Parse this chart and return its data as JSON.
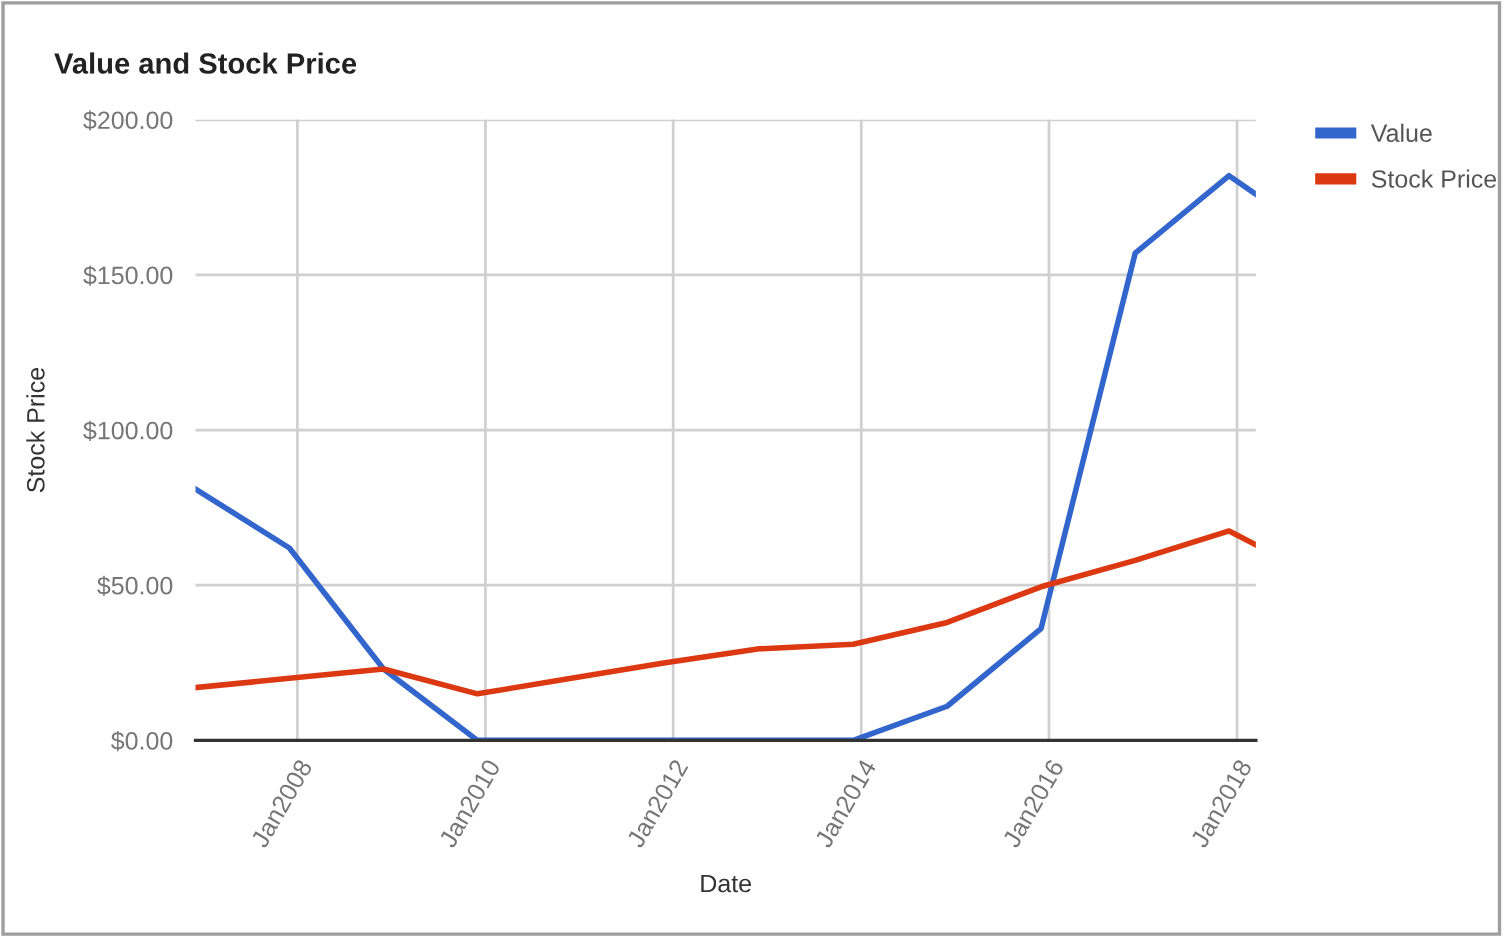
{
  "chart_data": {
    "type": "line",
    "title": "Value and Stock Price",
    "xlabel": "Date",
    "ylabel": "Stock Price",
    "x": [
      "2006-12",
      "2007-12",
      "2008-12",
      "2009-12",
      "2010-12",
      "2011-12",
      "2012-12",
      "2013-12",
      "2014-12",
      "2015-12",
      "2016-12",
      "2017-12",
      "2018-03-15"
    ],
    "series": [
      {
        "name": "Value",
        "color": "#3366cc",
        "values": [
          81,
          62,
          23,
          0,
          0,
          0,
          0,
          0,
          11,
          36,
          157,
          182,
          176
        ]
      },
      {
        "name": "Stock Price",
        "color": "#dc3912",
        "values": [
          17,
          20,
          23,
          15,
          20,
          25,
          29.5,
          31,
          38,
          49.5,
          58,
          67.5,
          63
        ]
      }
    ],
    "xlim": [
      "2006-12",
      "2018-03-15"
    ],
    "xticks": [
      {
        "value": "2008-01",
        "label": "Jan2008"
      },
      {
        "value": "2010-01",
        "label": "Jan2010"
      },
      {
        "value": "2012-01",
        "label": "Jan2012"
      },
      {
        "value": "2014-01",
        "label": "Jan2014"
      },
      {
        "value": "2016-01",
        "label": "Jan2016"
      },
      {
        "value": "2018-01",
        "label": "Jan2018"
      }
    ],
    "ylim": [
      0,
      200
    ],
    "yticks": [
      {
        "value": 0,
        "label": "$0.00"
      },
      {
        "value": 50,
        "label": "$50.00"
      },
      {
        "value": 100,
        "label": "$100.00"
      },
      {
        "value": 150,
        "label": "$150.00"
      },
      {
        "value": 200,
        "label": "$200.00"
      }
    ],
    "grid": true,
    "legend": "top right",
    "marker": "none",
    "line_style": "solid"
  }
}
